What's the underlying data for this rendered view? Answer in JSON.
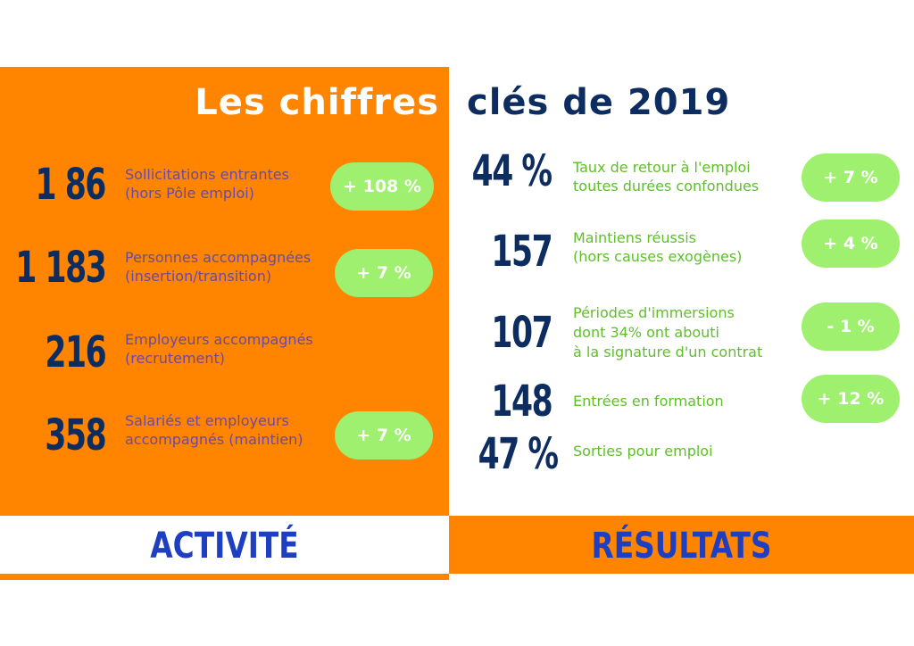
{
  "title": {
    "left": "Les chiffres",
    "right": "clés de 2019"
  },
  "activite": {
    "heading": "ACTIVITÉ",
    "items": [
      {
        "value": "1 86",
        "label_line1": "Sollicitations entrantes",
        "label_line2": "(hors Pôle emploi)",
        "badge": "+ 108 %"
      },
      {
        "value": "1 183",
        "label_line1": "Personnes accompagnées",
        "label_line2": "(insertion/transition)",
        "badge": "+ 7 %"
      },
      {
        "value": "216",
        "label_line1": "Employeurs accompagnés",
        "label_line2": "(recrutement)",
        "badge": ""
      },
      {
        "value": "358",
        "label_line1": "Salariés et employeurs",
        "label_line2": "accompagnés (maintien)",
        "badge": "+ 7 %"
      }
    ]
  },
  "resultats": {
    "heading": "RÉSULTATS",
    "items": [
      {
        "value": "44 %",
        "label_line1": "Taux de retour à l'emploi",
        "label_line2": "toutes durées confondues",
        "label_line3": "",
        "badge": "+ 7 %"
      },
      {
        "value": "157",
        "label_line1": "Maintiens réussis",
        "label_line2": "(hors causes exogènes)",
        "label_line3": "",
        "badge": "+ 4 %"
      },
      {
        "value": "107",
        "label_line1": "Périodes d'immersions",
        "label_line2": "dont 34% ont abouti",
        "label_line3": "à la signature d'un contrat",
        "badge": "- 1 %"
      },
      {
        "value": "148",
        "label_line1": "Entrées en formation",
        "label_line2": "",
        "label_line3": "",
        "badge": "+ 12 %"
      },
      {
        "value": "47 %",
        "label_line1": "Sorties pour emploi",
        "label_line2": "",
        "label_line3": "",
        "badge": ""
      }
    ]
  },
  "colors": {
    "orange": "#ff8400",
    "navy": "#0d2c5f",
    "green_pill": "#9ef06e",
    "green_text": "#5fbf2a",
    "purple_text": "#6b4aa0",
    "blue_heading": "#1e3fbf"
  }
}
